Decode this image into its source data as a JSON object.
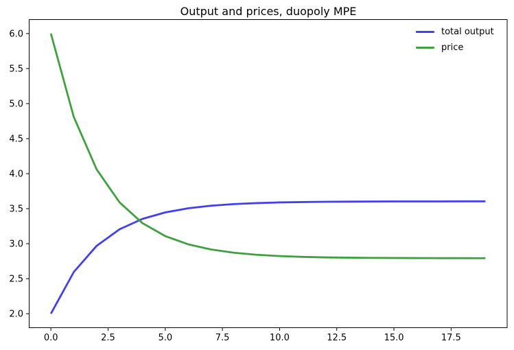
{
  "chart_data": {
    "type": "line",
    "title": "Output and prices, duopoly MPE",
    "x": [
      0,
      1,
      2,
      3,
      4,
      5,
      6,
      7,
      8,
      9,
      10,
      11,
      12,
      13,
      14,
      15,
      16,
      17,
      18,
      19
    ],
    "series": [
      {
        "name": "total output",
        "color": "#4040f0",
        "values": [
          2.0,
          2.595,
          2.969,
          3.205,
          3.353,
          3.446,
          3.505,
          3.542,
          3.565,
          3.579,
          3.589,
          3.594,
          3.598,
          3.6,
          3.602,
          3.603,
          3.603,
          3.603,
          3.604,
          3.604
        ]
      },
      {
        "name": "price",
        "color": "#40a040",
        "values": [
          6.0,
          4.81,
          4.061,
          3.59,
          3.294,
          3.108,
          2.991,
          2.917,
          2.871,
          2.841,
          2.823,
          2.811,
          2.804,
          2.8,
          2.797,
          2.795,
          2.794,
          2.793,
          2.793,
          2.792
        ]
      }
    ],
    "xlim": [
      -0.95,
      19.95
    ],
    "ylim": [
      1.8,
      6.2
    ],
    "x_ticks": [
      0,
      2.5,
      5,
      7.5,
      10,
      12.5,
      15,
      17.5
    ],
    "x_tick_labels": [
      "0.0",
      "2.5",
      "5.0",
      "7.5",
      "10.0",
      "12.5",
      "15.0",
      "17.5"
    ],
    "y_ticks": [
      2.0,
      2.5,
      3.0,
      3.5,
      4.0,
      4.5,
      5.0,
      5.5,
      6.0
    ],
    "y_tick_labels": [
      "2.0",
      "2.5",
      "3.0",
      "3.5",
      "4.0",
      "4.5",
      "5.0",
      "5.5",
      "6.0"
    ],
    "legend": {
      "position": "upper-right",
      "entries": [
        "total output",
        "price"
      ]
    },
    "grid": false,
    "axis_color": "#000000",
    "text_color": "#000000",
    "background": "#ffffff"
  }
}
